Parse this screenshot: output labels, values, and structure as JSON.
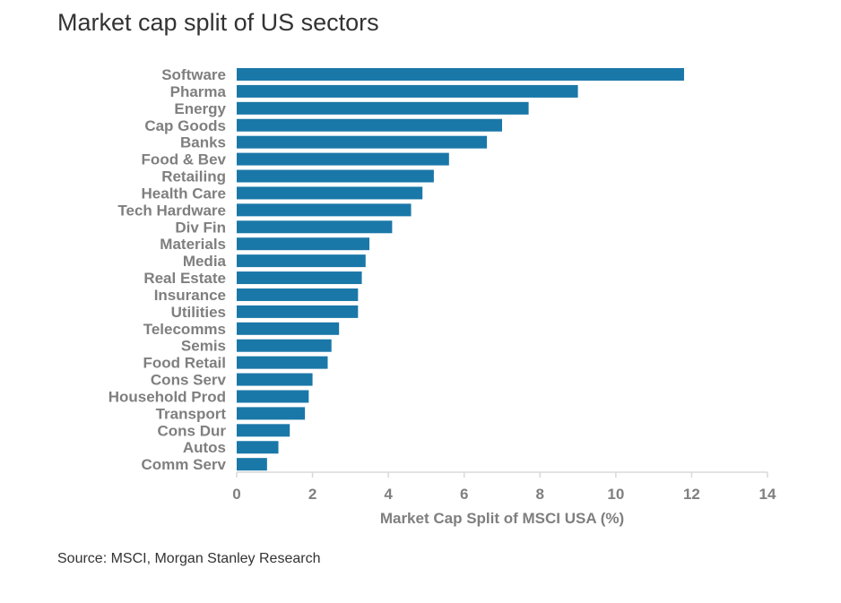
{
  "title": "Market cap split of US sectors",
  "source": "Source: MSCI, Morgan Stanley Research",
  "chart_data": {
    "type": "bar",
    "orientation": "horizontal",
    "title": "Market cap split of US sectors",
    "xlabel": "Market Cap Split of MSCI USA (%)",
    "ylabel": "",
    "xlim": [
      0,
      14
    ],
    "xticks": [
      "0",
      "2",
      "4",
      "6",
      "8",
      "10",
      "12",
      "14"
    ],
    "grid": false,
    "bar_color": "#1a78a8",
    "categories": [
      "Software",
      "Pharma",
      "Energy",
      "Cap Goods",
      "Banks",
      "Food & Bev",
      "Retailing",
      "Health Care",
      "Tech Hardware",
      "Div Fin",
      "Materials",
      "Media",
      "Real Estate",
      "Insurance",
      "Utilities",
      "Telecomms",
      "Semis",
      "Food Retail",
      "Cons Serv",
      "Household Prod",
      "Transport",
      "Cons Dur",
      "Autos",
      "Comm Serv"
    ],
    "values": [
      11.8,
      9.0,
      7.7,
      7.0,
      6.6,
      5.6,
      5.2,
      4.9,
      4.6,
      4.1,
      3.5,
      3.4,
      3.3,
      3.2,
      3.2,
      2.7,
      2.5,
      2.4,
      2.0,
      1.9,
      1.8,
      1.4,
      1.1,
      0.8
    ]
  }
}
